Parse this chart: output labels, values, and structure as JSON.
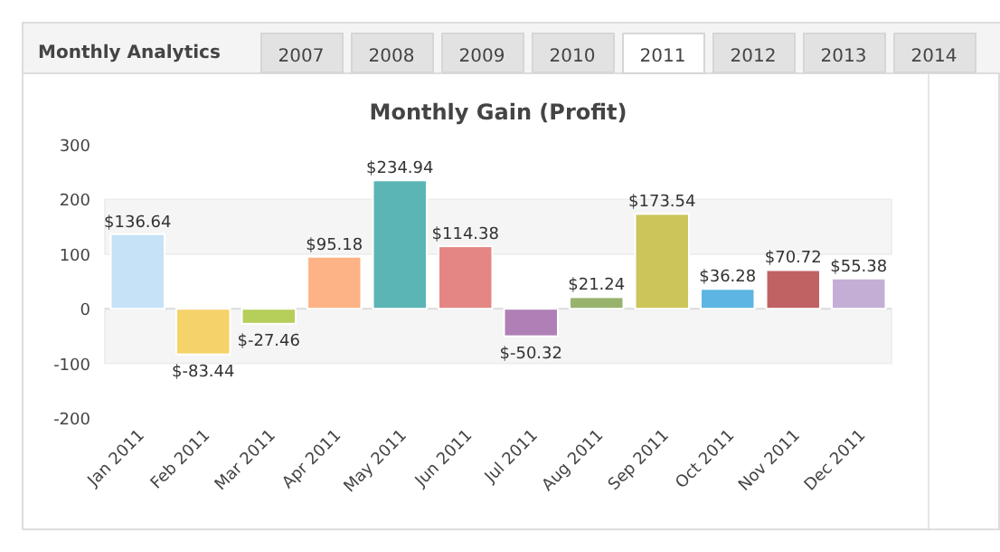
{
  "chart_data": {
    "type": "bar",
    "title": "Monthly Gain (Profit)",
    "annotations": [
      "Monthly Analytics",
      "2007",
      "2008",
      "2009",
      "2010",
      "2011",
      "2012",
      "2013",
      "2014"
    ],
    "categories": [
      "Jan 2011",
      "Feb 2011",
      "Mar 2011",
      "Apr 2011",
      "May 2011",
      "Jun 2011",
      "Jul 2011",
      "Aug 2011",
      "Sep 2011",
      "Oct 2011",
      "Nov 2011",
      "Dec 2011"
    ],
    "values": [
      136.64,
      -83.44,
      -27.46,
      95.18,
      234.94,
      114.38,
      -50.32,
      21.24,
      173.54,
      36.28,
      70.72,
      55.38
    ],
    "value_labels": [
      "$136.64",
      "$-83.44",
      "$-27.46",
      "$95.18",
      "$234.94",
      "$114.38",
      "$-50.32",
      "$21.24",
      "$173.54",
      "$36.28",
      "$70.72",
      "$55.38"
    ],
    "colors": [
      "#c6e2f7",
      "#f5d26a",
      "#b5cf5a",
      "#fdb385",
      "#5bb5b4",
      "#e48684",
      "#b07fb5",
      "#97b36e",
      "#cbc55a",
      "#5cb5e2",
      "#c06163",
      "#c4aed6"
    ],
    "ylim": [
      -200,
      300
    ],
    "yticks": [
      -200,
      -100,
      0,
      100,
      200,
      300
    ],
    "bands": [
      {
        "axis": "y",
        "from": 100,
        "to": 200,
        "color": "#f5f5f5"
      },
      {
        "axis": "y",
        "from": -100,
        "to": 0,
        "color": "#f5f5f5"
      }
    ]
  }
}
